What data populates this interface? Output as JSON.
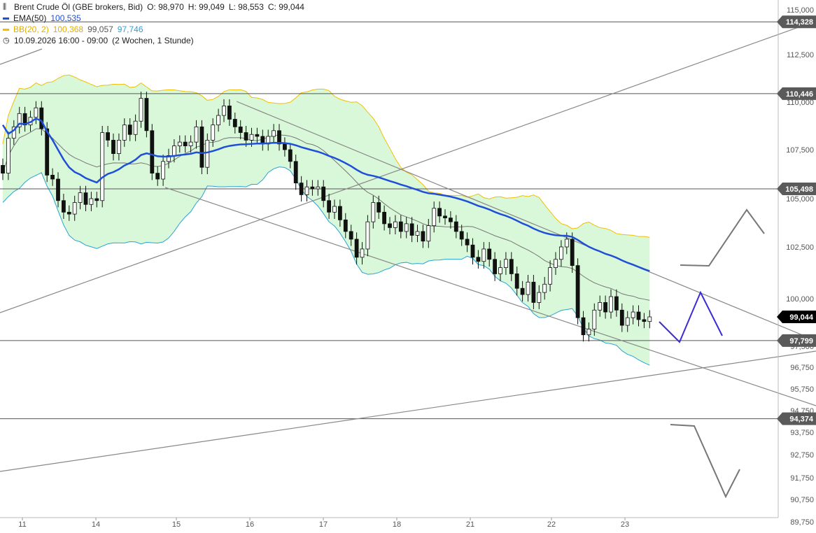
{
  "legend": {
    "instrument": "Brent Crude Öl (GBE brokers, Bid)",
    "ohlc": {
      "open": "O: 98,970",
      "high": "H: 99,049",
      "low": "L: 98,553",
      "close": "C: 99,044"
    },
    "ema_label": "EMA(50)",
    "ema_value": "100,535",
    "bb_label": "BB(20, 2)",
    "bb_upper": "100,368",
    "bb_mid": "99,057",
    "bb_lower": "97,746",
    "period": "10.09.2026 16:00 - 09:00",
    "period_note": "(2 Wochen, 1 Stunde)"
  },
  "colors": {
    "ema": "#1f4fd8",
    "bb_upper": "#f0c000",
    "bb_lower": "#29a3d6",
    "bb_fill": "#d9f7d9",
    "bb_mid": "#777777",
    "candle": "#111111",
    "trendline": "#888888",
    "hline": "#555555",
    "label_bg": "#5a5a5a",
    "current_bg": "#000000",
    "projection": "#3b2bd6"
  },
  "chart_data": {
    "type": "candlestick",
    "y_axis": {
      "min": 89750,
      "max": 115000,
      "ticks": [
        "115,000",
        "112,500",
        "110,000",
        "107,500",
        "105,000",
        "102,500",
        "100,000",
        "97,500",
        "96,750",
        "95,750",
        "94,750",
        "93,750",
        "92,750",
        "91,750",
        "90,750",
        "89,750"
      ],
      "tick_values": [
        115000,
        112500,
        110000,
        107500,
        105000,
        102500,
        100000,
        97500,
        96750,
        95750,
        94750,
        93750,
        92750,
        91750,
        90750,
        89750
      ]
    },
    "x_axis": {
      "labels": [
        "11",
        "14",
        "15",
        "16",
        "17",
        "18",
        "21",
        "22",
        "23"
      ]
    },
    "horizontal_levels": [
      {
        "value": 114328,
        "label": "114,328"
      },
      {
        "value": 110446,
        "label": "110,446"
      },
      {
        "value": 105498,
        "label": "105,498"
      },
      {
        "value": 97799,
        "label": "97,799"
      },
      {
        "value": 94374,
        "label": "94,374"
      }
    ],
    "current_price": {
      "value": 99044,
      "label": "99,044"
    },
    "candles_close_path": [
      [
        0,
        106300
      ],
      [
        1,
        108100
      ],
      [
        2,
        108700
      ],
      [
        3,
        109400
      ],
      [
        4,
        108800
      ],
      [
        5,
        109200
      ],
      [
        6,
        109700
      ],
      [
        7,
        108600
      ],
      [
        8,
        106200
      ],
      [
        9,
        106000
      ],
      [
        10,
        104900
      ],
      [
        11,
        104300
      ],
      [
        12,
        104200
      ],
      [
        13,
        104800
      ],
      [
        14,
        105300
      ],
      [
        15,
        104700
      ],
      [
        16,
        105000
      ],
      [
        17,
        104900
      ],
      [
        18,
        108400
      ],
      [
        19,
        108000
      ],
      [
        20,
        107300
      ],
      [
        21,
        108000
      ],
      [
        22,
        108800
      ],
      [
        23,
        108300
      ],
      [
        24,
        109000
      ],
      [
        25,
        110200
      ],
      [
        26,
        108500
      ],
      [
        27,
        106300
      ],
      [
        28,
        106000
      ],
      [
        29,
        106900
      ],
      [
        30,
        107200
      ],
      [
        31,
        107700
      ],
      [
        32,
        107900
      ],
      [
        33,
        107700
      ],
      [
        34,
        107900
      ],
      [
        35,
        108700
      ],
      [
        36,
        106600
      ],
      [
        37,
        108000
      ],
      [
        38,
        108800
      ],
      [
        39,
        109300
      ],
      [
        40,
        109800
      ],
      [
        41,
        109100
      ],
      [
        42,
        108700
      ],
      [
        43,
        108400
      ],
      [
        44,
        108000
      ],
      [
        45,
        108300
      ],
      [
        46,
        108200
      ],
      [
        47,
        107800
      ],
      [
        48,
        108200
      ],
      [
        49,
        108500
      ],
      [
        50,
        107800
      ],
      [
        51,
        107500
      ],
      [
        52,
        106900
      ],
      [
        53,
        105800
      ],
      [
        54,
        105200
      ],
      [
        55,
        105600
      ],
      [
        56,
        105500
      ],
      [
        57,
        105600
      ],
      [
        58,
        104900
      ],
      [
        59,
        104300
      ],
      [
        60,
        104600
      ],
      [
        61,
        103900
      ],
      [
        62,
        103300
      ],
      [
        63,
        102900
      ],
      [
        64,
        102000
      ],
      [
        65,
        102400
      ],
      [
        66,
        103800
      ],
      [
        67,
        104800
      ],
      [
        68,
        104300
      ],
      [
        69,
        103700
      ],
      [
        70,
        103500
      ],
      [
        71,
        103800
      ],
      [
        72,
        103300
      ],
      [
        73,
        103700
      ],
      [
        74,
        103100
      ],
      [
        75,
        103300
      ],
      [
        76,
        102800
      ],
      [
        77,
        103600
      ],
      [
        78,
        104500
      ],
      [
        79,
        104100
      ],
      [
        80,
        104000
      ],
      [
        81,
        103800
      ],
      [
        82,
        103300
      ],
      [
        83,
        102900
      ],
      [
        84,
        102600
      ],
      [
        85,
        102000
      ],
      [
        86,
        101800
      ],
      [
        87,
        102400
      ],
      [
        88,
        101900
      ],
      [
        89,
        101200
      ],
      [
        90,
        101500
      ],
      [
        91,
        101900
      ],
      [
        92,
        101200
      ],
      [
        93,
        100500
      ],
      [
        94,
        100200
      ],
      [
        95,
        100800
      ],
      [
        96,
        99800
      ],
      [
        97,
        100300
      ],
      [
        98,
        100700
      ],
      [
        99,
        101500
      ],
      [
        100,
        101900
      ],
      [
        101,
        102500
      ],
      [
        102,
        102900
      ],
      [
        103,
        101600
      ],
      [
        104,
        99000
      ],
      [
        105,
        98100
      ],
      [
        106,
        98400
      ],
      [
        107,
        99400
      ],
      [
        108,
        99800
      ],
      [
        109,
        99300
      ],
      [
        110,
        100100
      ],
      [
        111,
        99400
      ],
      [
        112,
        98600
      ],
      [
        113,
        99000
      ],
      [
        114,
        99300
      ],
      [
        115,
        98900
      ],
      [
        116,
        98800
      ],
      [
        117,
        99044
      ]
    ],
    "trendlines": "channel and support/resistance lines as drawn",
    "projection": "blue zigzag scenario and two gray scenario paths"
  }
}
